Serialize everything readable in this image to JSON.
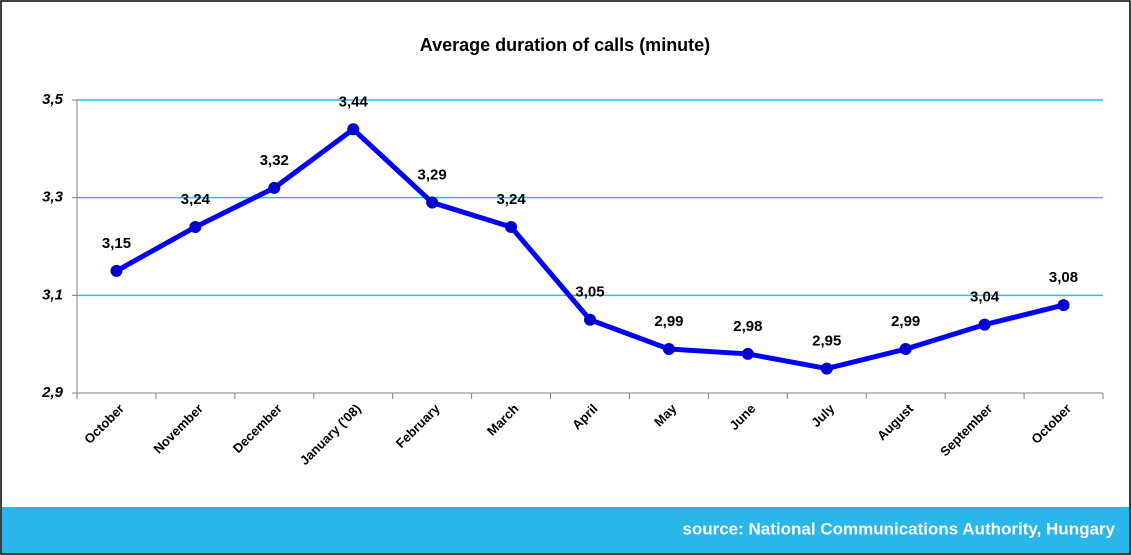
{
  "chart_data": {
    "type": "line",
    "title": "Average duration of calls (minute)",
    "categories": [
      "October",
      "November",
      "December",
      "January ('08)",
      "February",
      "March",
      "April",
      "May",
      "June",
      "July",
      "August",
      "September",
      "October"
    ],
    "series": [
      {
        "name": "Average duration of calls",
        "color": "#0000ff",
        "values": [
          3.15,
          3.24,
          3.32,
          3.44,
          3.29,
          3.24,
          3.05,
          2.99,
          2.98,
          2.95,
          2.99,
          3.04,
          3.08
        ],
        "value_labels": [
          "3,15",
          "3,24",
          "3,32",
          "3,44",
          "3,29",
          "3,24",
          "3,05",
          "2,99",
          "2,98",
          "2,95",
          "2,99",
          "3,04",
          "3,08"
        ]
      }
    ],
    "ylim": [
      2.9,
      3.5
    ],
    "yticks": [
      {
        "value": 2.9,
        "label": "2,9"
      },
      {
        "value": 3.1,
        "label": "3,1"
      },
      {
        "value": 3.3,
        "label": "3,3"
      },
      {
        "value": 3.5,
        "label": "3,5"
      }
    ],
    "grid": true,
    "source": "source: National Communications Authority, Hungary"
  }
}
